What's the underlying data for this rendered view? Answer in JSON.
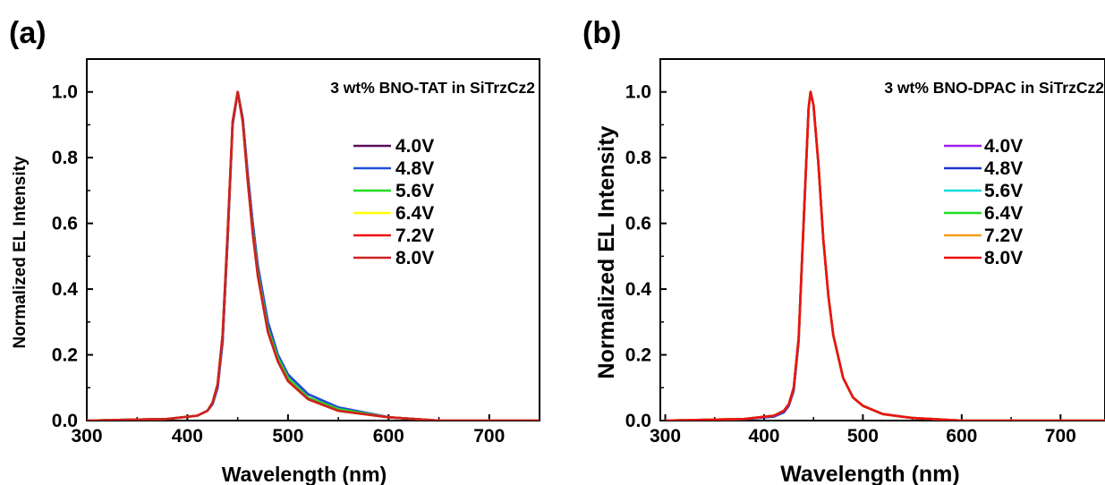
{
  "chart_data": [
    {
      "panel_label": "(a)",
      "type": "line",
      "title": "",
      "annotation": "3 wt% BNO-TAT in SiTrzCz2",
      "xlabel": "Wavelength (nm)",
      "ylabel": "Normalized EL Intensity",
      "xlim": [
        300,
        750
      ],
      "ylim": [
        0,
        1.1
      ],
      "xticks": [
        300,
        400,
        500,
        600,
        700
      ],
      "xtick_labels": [
        "300",
        "400",
        "500",
        "600",
        "700"
      ],
      "yticks": [
        0.0,
        0.2,
        0.4,
        0.6,
        0.8,
        1.0
      ],
      "ytick_labels": [
        "0.0",
        "0.2",
        "0.4",
        "0.6",
        "0.8",
        "1.0"
      ],
      "grid": false,
      "legend_position": "right",
      "peak_wavelength": 450,
      "series": [
        {
          "name": "4.0V",
          "color": "#5a0f5a",
          "x": [
            300,
            380,
            410,
            420,
            425,
            430,
            435,
            440,
            445,
            450,
            455,
            460,
            465,
            470,
            480,
            490,
            500,
            520,
            550,
            600,
            650,
            700,
            750
          ],
          "y": [
            0.0,
            0.005,
            0.015,
            0.03,
            0.05,
            0.1,
            0.24,
            0.55,
            0.9,
            1.0,
            0.92,
            0.75,
            0.6,
            0.47,
            0.3,
            0.2,
            0.14,
            0.08,
            0.04,
            0.01,
            0.0,
            0.0,
            0.0
          ]
        },
        {
          "name": "4.8V",
          "color": "#1f4fd8",
          "x": [
            300,
            380,
            410,
            420,
            425,
            430,
            435,
            440,
            445,
            450,
            455,
            460,
            465,
            470,
            480,
            490,
            500,
            520,
            550,
            600,
            650,
            700,
            750
          ],
          "y": [
            0.0,
            0.005,
            0.015,
            0.03,
            0.05,
            0.1,
            0.24,
            0.55,
            0.9,
            1.0,
            0.92,
            0.75,
            0.6,
            0.47,
            0.3,
            0.2,
            0.14,
            0.08,
            0.04,
            0.01,
            0.0,
            0.0,
            0.0
          ]
        },
        {
          "name": "5.6V",
          "color": "#22dd22",
          "x": [
            300,
            380,
            410,
            420,
            425,
            430,
            435,
            440,
            445,
            450,
            455,
            460,
            465,
            470,
            480,
            490,
            500,
            520,
            550,
            600,
            650,
            700,
            750
          ],
          "y": [
            0.0,
            0.005,
            0.015,
            0.03,
            0.055,
            0.11,
            0.26,
            0.57,
            0.91,
            1.0,
            0.91,
            0.73,
            0.58,
            0.45,
            0.28,
            0.19,
            0.13,
            0.07,
            0.035,
            0.01,
            0.0,
            0.0,
            0.0
          ]
        },
        {
          "name": "6.4V",
          "color": "#ffff00",
          "x": [
            300,
            380,
            410,
            420,
            425,
            430,
            435,
            440,
            445,
            450,
            455,
            460,
            465,
            470,
            480,
            490,
            500,
            520,
            550,
            600,
            650,
            700,
            750
          ],
          "y": [
            0.0,
            0.005,
            0.015,
            0.03,
            0.055,
            0.11,
            0.26,
            0.57,
            0.91,
            1.0,
            0.91,
            0.73,
            0.57,
            0.44,
            0.27,
            0.18,
            0.12,
            0.065,
            0.03,
            0.01,
            0.0,
            0.0,
            0.0
          ]
        },
        {
          "name": "7.2V",
          "color": "#ee1111",
          "x": [
            300,
            380,
            410,
            420,
            425,
            430,
            435,
            440,
            445,
            450,
            455,
            460,
            465,
            470,
            480,
            490,
            500,
            520,
            550,
            600,
            650,
            700,
            750
          ],
          "y": [
            0.0,
            0.005,
            0.015,
            0.03,
            0.055,
            0.11,
            0.26,
            0.57,
            0.91,
            1.0,
            0.91,
            0.73,
            0.57,
            0.44,
            0.27,
            0.18,
            0.12,
            0.065,
            0.03,
            0.01,
            0.0,
            0.0,
            0.0
          ]
        },
        {
          "name": "8.0V",
          "color": "#cc2222",
          "x": [
            300,
            380,
            410,
            420,
            425,
            430,
            435,
            440,
            445,
            450,
            455,
            460,
            465,
            470,
            480,
            490,
            500,
            520,
            550,
            600,
            650,
            700,
            750
          ],
          "y": [
            0.0,
            0.005,
            0.015,
            0.03,
            0.055,
            0.11,
            0.26,
            0.57,
            0.91,
            1.0,
            0.91,
            0.73,
            0.57,
            0.44,
            0.27,
            0.18,
            0.12,
            0.065,
            0.03,
            0.01,
            0.0,
            0.0,
            0.0
          ]
        }
      ]
    },
    {
      "panel_label": "(b)",
      "type": "line",
      "title": "",
      "annotation": "3 wt% BNO-DPAC in SiTrzCz2",
      "xlabel": "Wavelength (nm)",
      "ylabel": "Normalized EL Intensity",
      "xlim": [
        295,
        745
      ],
      "ylim": [
        0,
        1.1
      ],
      "xticks": [
        300,
        400,
        500,
        600,
        700
      ],
      "xtick_labels": [
        "300",
        "400",
        "500",
        "600",
        "700"
      ],
      "yticks": [
        0.0,
        0.2,
        0.4,
        0.6,
        0.8,
        1.0
      ],
      "ytick_labels": [
        "0.0",
        "0.2",
        "0.4",
        "0.6",
        "0.8",
        "1.0"
      ],
      "grid": false,
      "legend_position": "right",
      "peak_wavelength": 447,
      "series": [
        {
          "name": "4.0V",
          "color": "#a020f0",
          "x": [
            300,
            380,
            410,
            420,
            425,
            430,
            435,
            440,
            445,
            447,
            450,
            455,
            460,
            465,
            470,
            480,
            490,
            500,
            520,
            550,
            600,
            650,
            700,
            745
          ],
          "y": [
            0.0,
            0.005,
            0.015,
            0.03,
            0.05,
            0.1,
            0.25,
            0.6,
            0.95,
            1.0,
            0.96,
            0.78,
            0.55,
            0.38,
            0.26,
            0.13,
            0.07,
            0.045,
            0.02,
            0.008,
            0.0,
            0.0,
            0.0,
            0.0
          ]
        },
        {
          "name": "4.8V",
          "color": "#2233cc",
          "x": [
            300,
            380,
            410,
            420,
            425,
            430,
            435,
            440,
            445,
            447,
            450,
            455,
            460,
            465,
            470,
            480,
            490,
            500,
            520,
            550,
            600,
            650,
            700,
            745
          ],
          "y": [
            0.0,
            0.004,
            0.012,
            0.025,
            0.045,
            0.09,
            0.24,
            0.59,
            0.95,
            1.0,
            0.96,
            0.78,
            0.55,
            0.38,
            0.26,
            0.13,
            0.07,
            0.045,
            0.02,
            0.008,
            0.0,
            0.0,
            0.0,
            0.0
          ]
        },
        {
          "name": "5.6V",
          "color": "#11dddd",
          "x": [
            300,
            380,
            410,
            420,
            425,
            430,
            435,
            440,
            445,
            447,
            450,
            455,
            460,
            465,
            470,
            480,
            490,
            500,
            520,
            550,
            600,
            650,
            700,
            745
          ],
          "y": [
            0.0,
            0.005,
            0.015,
            0.03,
            0.05,
            0.1,
            0.25,
            0.6,
            0.95,
            1.0,
            0.96,
            0.78,
            0.55,
            0.38,
            0.26,
            0.13,
            0.07,
            0.045,
            0.02,
            0.008,
            0.0,
            0.0,
            0.0,
            0.0
          ]
        },
        {
          "name": "6.4V",
          "color": "#22dd22",
          "x": [
            300,
            380,
            410,
            420,
            425,
            430,
            435,
            440,
            445,
            447,
            450,
            455,
            460,
            465,
            470,
            480,
            490,
            500,
            520,
            550,
            600,
            650,
            700,
            745
          ],
          "y": [
            0.0,
            0.005,
            0.015,
            0.03,
            0.05,
            0.1,
            0.25,
            0.6,
            0.95,
            1.0,
            0.96,
            0.78,
            0.55,
            0.38,
            0.26,
            0.13,
            0.07,
            0.045,
            0.02,
            0.008,
            0.0,
            0.0,
            0.0,
            0.0
          ]
        },
        {
          "name": "7.2V",
          "color": "#f39c1f",
          "x": [
            300,
            380,
            410,
            420,
            425,
            430,
            435,
            440,
            445,
            447,
            450,
            455,
            460,
            465,
            470,
            480,
            490,
            500,
            520,
            550,
            600,
            650,
            700,
            745
          ],
          "y": [
            0.0,
            0.005,
            0.015,
            0.03,
            0.05,
            0.1,
            0.25,
            0.6,
            0.95,
            1.0,
            0.96,
            0.78,
            0.55,
            0.38,
            0.26,
            0.13,
            0.07,
            0.045,
            0.02,
            0.008,
            0.0,
            0.0,
            0.0,
            0.0
          ]
        },
        {
          "name": "8.0V",
          "color": "#ee1111",
          "x": [
            300,
            380,
            410,
            420,
            425,
            430,
            435,
            440,
            445,
            447,
            450,
            455,
            460,
            465,
            470,
            480,
            490,
            500,
            520,
            550,
            600,
            650,
            700,
            745
          ],
          "y": [
            0.0,
            0.005,
            0.015,
            0.03,
            0.05,
            0.1,
            0.25,
            0.6,
            0.95,
            1.0,
            0.96,
            0.78,
            0.55,
            0.38,
            0.26,
            0.13,
            0.07,
            0.045,
            0.02,
            0.008,
            0.0,
            0.0,
            0.0,
            0.0
          ]
        }
      ]
    }
  ]
}
